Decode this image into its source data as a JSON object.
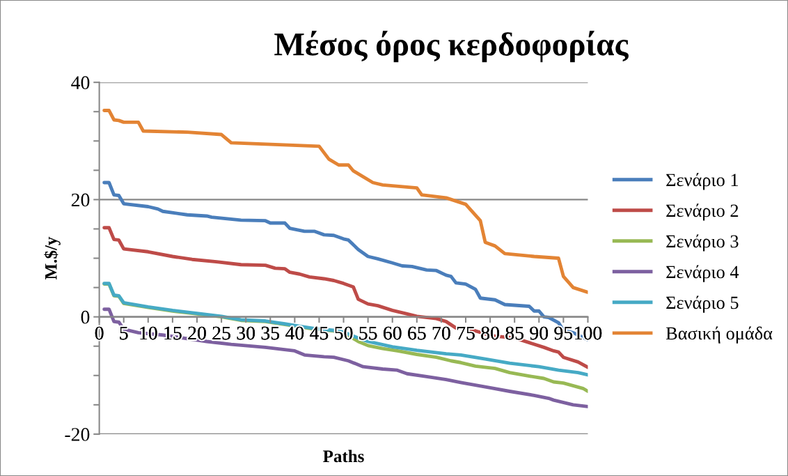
{
  "chart_data": {
    "type": "line",
    "title": "Μέσος όρος κερδοφορίας",
    "xlabel": "Paths",
    "ylabel": "M.$/y",
    "xlim": [
      0,
      100
    ],
    "xticks": [
      0,
      5,
      10,
      15,
      20,
      25,
      30,
      35,
      40,
      45,
      50,
      55,
      60,
      65,
      70,
      75,
      80,
      85,
      90,
      95,
      100
    ],
    "ylim": [
      -20,
      40
    ],
    "yticks": [
      -20,
      {
        "value": -15,
        "label": null
      },
      {
        "value": -10,
        "label": null
      },
      {
        "value": -5,
        "label": null
      },
      0,
      {
        "value": 5,
        "label": null
      },
      {
        "value": 10,
        "label": null
      },
      {
        "value": 15,
        "label": null
      },
      20,
      {
        "value": 25,
        "label": null
      },
      {
        "value": 30,
        "label": null
      },
      {
        "value": 35,
        "label": null
      },
      40
    ],
    "grid": "y",
    "legend": "right",
    "marker": "none",
    "line_style": "solid",
    "series": [
      {
        "name": "Σενάριο 1",
        "color": "#4a7ebb",
        "x": [
          1,
          2,
          3,
          4,
          5,
          10,
          12,
          13,
          18,
          22,
          23,
          29,
          34,
          35,
          38,
          39,
          42,
          44,
          46,
          48,
          50,
          51,
          53,
          55,
          57,
          60,
          62,
          64,
          67,
          69,
          71,
          72,
          73,
          75,
          77,
          78,
          81,
          83,
          88,
          89,
          90,
          91,
          92,
          94,
          95,
          97,
          100
        ],
        "values": [
          22.9,
          22.9,
          20.8,
          20.7,
          19.3,
          18.8,
          18.4,
          18.0,
          17.4,
          17.2,
          17.0,
          16.5,
          16.4,
          16.0,
          16.0,
          15.1,
          14.6,
          14.6,
          14.0,
          13.9,
          13.3,
          13.1,
          11.5,
          10.3,
          9.9,
          9.2,
          8.7,
          8.6,
          8.0,
          7.9,
          7.1,
          6.9,
          5.8,
          5.6,
          4.7,
          3.2,
          2.9,
          2.1,
          1.8,
          1.0,
          1.0,
          0.0,
          -0.1,
          -1.0,
          -2.3,
          -2.7,
          -3.9
        ]
      },
      {
        "name": "Σενάριο 2",
        "color": "#be4b48",
        "x": [
          1,
          2,
          3,
          4,
          5,
          10,
          15,
          19,
          24,
          29,
          34,
          36,
          38,
          39,
          41,
          43,
          46,
          48,
          50,
          52,
          53,
          55,
          57,
          60,
          63,
          65,
          69,
          71,
          73,
          75,
          79,
          81,
          85,
          88,
          91,
          93,
          94,
          95,
          98,
          100
        ],
        "values": [
          15.2,
          15.2,
          13.2,
          13.1,
          11.6,
          11.1,
          10.3,
          9.8,
          9.4,
          8.9,
          8.8,
          8.3,
          8.2,
          7.6,
          7.3,
          6.8,
          6.5,
          6.2,
          5.7,
          5.1,
          3.0,
          2.2,
          1.9,
          1.1,
          0.5,
          0.1,
          -0.3,
          -0.8,
          -1.9,
          -1.9,
          -2.9,
          -3.3,
          -3.6,
          -4.4,
          -5.2,
          -5.8,
          -6.0,
          -6.9,
          -7.7,
          -8.6
        ]
      },
      {
        "name": "Σενάριο 3",
        "color": "#98b954",
        "x": [
          1,
          2,
          3,
          4,
          5,
          10,
          15,
          20,
          25,
          29,
          34,
          38,
          41,
          44,
          48,
          51,
          53,
          55,
          58,
          61,
          65,
          69,
          72,
          74,
          77,
          81,
          84,
          88,
          91,
          93,
          95,
          99,
          100
        ],
        "values": [
          5.6,
          5.6,
          3.6,
          3.5,
          2.3,
          1.6,
          1.0,
          0.5,
          0.0,
          -0.6,
          -0.8,
          -1.3,
          -1.7,
          -2.1,
          -2.4,
          -3.2,
          -4.2,
          -4.9,
          -5.4,
          -5.8,
          -6.4,
          -6.9,
          -7.5,
          -7.8,
          -8.4,
          -8.8,
          -9.5,
          -10.1,
          -10.5,
          -11.1,
          -11.3,
          -12.2,
          -12.7
        ]
      },
      {
        "name": "Σενάριο 4",
        "color": "#7d60a0",
        "x": [
          1,
          2,
          3,
          4,
          5,
          8,
          13,
          17,
          22,
          27,
          34,
          37,
          40,
          42,
          46,
          48,
          51,
          54,
          58,
          61,
          63,
          67,
          71,
          74,
          78,
          80,
          84,
          89,
          92,
          93,
          97,
          100
        ],
        "values": [
          1.3,
          1.3,
          -0.8,
          -0.9,
          -2.1,
          -2.7,
          -3.1,
          -3.6,
          -4.2,
          -4.7,
          -5.2,
          -5.5,
          -5.8,
          -6.5,
          -6.8,
          -6.9,
          -7.5,
          -8.5,
          -8.9,
          -9.1,
          -9.7,
          -10.2,
          -10.7,
          -11.2,
          -11.8,
          -12.1,
          -12.7,
          -13.4,
          -13.9,
          -14.2,
          -15.0,
          -15.3
        ]
      },
      {
        "name": "Σενάριο 5",
        "color": "#46aac5",
        "x": [
          1,
          2,
          3,
          4,
          5,
          10,
          15,
          20,
          25,
          29,
          34,
          38,
          41,
          44,
          48,
          50,
          53,
          55,
          60,
          65,
          71,
          74,
          79,
          84,
          90,
          94,
          98,
          100
        ],
        "values": [
          5.7,
          5.7,
          3.7,
          3.6,
          2.4,
          1.7,
          1.1,
          0.6,
          0.1,
          -0.5,
          -0.7,
          -1.2,
          -1.6,
          -2.0,
          -2.3,
          -2.6,
          -3.6,
          -4.2,
          -5.1,
          -5.7,
          -6.3,
          -6.5,
          -7.2,
          -7.9,
          -8.5,
          -9.1,
          -9.5,
          -9.9
        ]
      },
      {
        "name": "Βασική ομάδα",
        "color": "#e38434",
        "x": [
          1,
          2,
          3,
          4,
          5,
          8,
          9,
          18,
          25,
          27,
          45,
          47,
          49,
          51,
          52,
          56,
          58,
          65,
          66,
          71,
          75,
          78,
          79,
          81,
          83,
          89,
          94,
          95,
          97,
          100
        ],
        "values": [
          35.2,
          35.2,
          33.6,
          33.5,
          33.2,
          33.2,
          31.7,
          31.5,
          31.1,
          29.7,
          29.1,
          26.9,
          25.9,
          25.9,
          24.9,
          22.9,
          22.5,
          22.0,
          20.8,
          20.3,
          19.2,
          16.4,
          12.7,
          12.1,
          10.8,
          10.3,
          10.0,
          6.9,
          5.0,
          4.2
        ]
      }
    ]
  }
}
